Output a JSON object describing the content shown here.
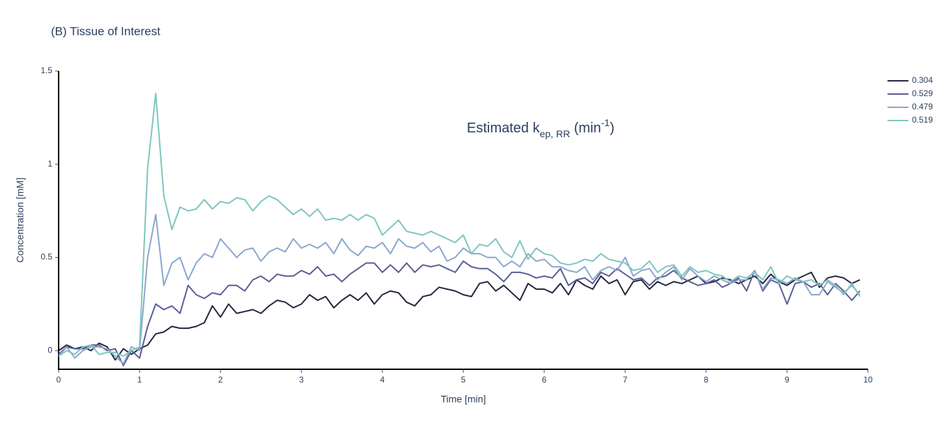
{
  "chart_data": {
    "type": "line",
    "title": "(B) Tissue of Interest",
    "xlabel": "Time [min]",
    "ylabel": "Concentration [mM]",
    "legend_title": {
      "main": "Estimated k",
      "sub": "ep, RR",
      "mid": " (min",
      "sup": "-1",
      "end": ")"
    },
    "legend": "top-right",
    "grid": false,
    "xlim": [
      0,
      10
    ],
    "ylim": [
      -0.1,
      1.5
    ],
    "xticks": [
      0,
      1,
      2,
      3,
      4,
      5,
      6,
      7,
      8,
      9,
      10
    ],
    "yticks": [
      0,
      0.5,
      1,
      1.5
    ],
    "x": [
      0,
      0.1,
      0.2,
      0.3,
      0.4,
      0.5,
      0.6,
      0.7,
      0.8,
      0.9,
      1,
      1.1,
      1.2,
      1.3,
      1.4,
      1.5,
      1.6,
      1.7,
      1.8,
      1.9,
      2,
      2.1,
      2.2,
      2.3,
      2.4,
      2.5,
      2.6,
      2.7,
      2.8,
      2.9,
      3,
      3.1,
      3.2,
      3.3,
      3.4,
      3.5,
      3.6,
      3.7,
      3.8,
      3.9,
      4,
      4.1,
      4.2,
      4.3,
      4.4,
      4.5,
      4.6,
      4.7,
      4.8,
      4.9,
      5,
      5.1,
      5.2,
      5.3,
      5.4,
      5.5,
      5.6,
      5.7,
      5.8,
      5.9,
      6,
      6.1,
      6.2,
      6.3,
      6.4,
      6.5,
      6.6,
      6.7,
      6.8,
      6.9,
      7,
      7.1,
      7.2,
      7.3,
      7.4,
      7.5,
      7.6,
      7.7,
      7.8,
      7.9,
      8,
      8.1,
      8.2,
      8.3,
      8.4,
      8.5,
      8.6,
      8.7,
      8.8,
      8.9,
      9,
      9.1,
      9.2,
      9.3,
      9.4,
      9.5,
      9.6,
      9.7,
      9.8,
      9.9
    ],
    "series": [
      {
        "name": "0.304",
        "color": "#26263f",
        "values": [
          0,
          0.03,
          0.01,
          0.02,
          0,
          0.04,
          0.02,
          -0.05,
          0.01,
          -0.02,
          0.01,
          0.03,
          0.09,
          0.1,
          0.13,
          0.12,
          0.12,
          0.13,
          0.15,
          0.24,
          0.18,
          0.25,
          0.2,
          0.21,
          0.22,
          0.2,
          0.24,
          0.27,
          0.26,
          0.23,
          0.25,
          0.3,
          0.27,
          0.29,
          0.23,
          0.27,
          0.3,
          0.27,
          0.31,
          0.25,
          0.3,
          0.32,
          0.31,
          0.26,
          0.24,
          0.29,
          0.3,
          0.34,
          0.33,
          0.32,
          0.3,
          0.29,
          0.36,
          0.37,
          0.32,
          0.35,
          0.31,
          0.27,
          0.36,
          0.33,
          0.33,
          0.31,
          0.36,
          0.3,
          0.38,
          0.35,
          0.33,
          0.4,
          0.36,
          0.38,
          0.3,
          0.37,
          0.38,
          0.33,
          0.37,
          0.35,
          0.37,
          0.36,
          0.38,
          0.4,
          0.36,
          0.37,
          0.39,
          0.38,
          0.36,
          0.38,
          0.4,
          0.36,
          0.41,
          0.37,
          0.35,
          0.38,
          0.4,
          0.42,
          0.34,
          0.39,
          0.4,
          0.39,
          0.36,
          0.38
        ]
      },
      {
        "name": "0.529",
        "color": "#5a5e95",
        "values": [
          -0.02,
          0.02,
          0.01,
          0.01,
          0.03,
          0.03,
          0,
          0.01,
          -0.08,
          0,
          -0.04,
          0.13,
          0.25,
          0.22,
          0.24,
          0.2,
          0.35,
          0.3,
          0.28,
          0.31,
          0.3,
          0.35,
          0.35,
          0.32,
          0.38,
          0.4,
          0.37,
          0.41,
          0.4,
          0.4,
          0.43,
          0.41,
          0.45,
          0.4,
          0.41,
          0.37,
          0.41,
          0.44,
          0.47,
          0.47,
          0.42,
          0.46,
          0.42,
          0.47,
          0.42,
          0.46,
          0.45,
          0.46,
          0.44,
          0.42,
          0.48,
          0.45,
          0.44,
          0.44,
          0.41,
          0.37,
          0.42,
          0.42,
          0.41,
          0.39,
          0.4,
          0.39,
          0.44,
          0.35,
          0.38,
          0.39,
          0.36,
          0.42,
          0.4,
          0.44,
          0.41,
          0.38,
          0.39,
          0.35,
          0.39,
          0.4,
          0.43,
          0.39,
          0.37,
          0.35,
          0.36,
          0.38,
          0.34,
          0.36,
          0.39,
          0.32,
          0.43,
          0.32,
          0.38,
          0.36,
          0.25,
          0.36,
          0.37,
          0.34,
          0.36,
          0.3,
          0.36,
          0.32,
          0.27,
          0.32
        ]
      },
      {
        "name": "0.479",
        "color": "#8aa7cd",
        "values": [
          -0.03,
          0.02,
          -0.04,
          0,
          0.02,
          0.02,
          0.01,
          -0.03,
          -0.07,
          0.02,
          0,
          0.5,
          0.73,
          0.35,
          0.47,
          0.5,
          0.38,
          0.47,
          0.52,
          0.5,
          0.6,
          0.55,
          0.5,
          0.54,
          0.55,
          0.48,
          0.53,
          0.55,
          0.53,
          0.6,
          0.55,
          0.57,
          0.55,
          0.58,
          0.52,
          0.6,
          0.54,
          0.51,
          0.56,
          0.55,
          0.58,
          0.52,
          0.6,
          0.56,
          0.55,
          0.58,
          0.53,
          0.56,
          0.48,
          0.5,
          0.55,
          0.52,
          0.52,
          0.5,
          0.5,
          0.45,
          0.48,
          0.45,
          0.52,
          0.48,
          0.49,
          0.45,
          0.45,
          0.43,
          0.42,
          0.45,
          0.38,
          0.43,
          0.45,
          0.43,
          0.5,
          0.4,
          0.43,
          0.44,
          0.38,
          0.42,
          0.45,
          0.38,
          0.44,
          0.4,
          0.37,
          0.4,
          0.38,
          0.36,
          0.38,
          0.38,
          0.43,
          0.33,
          0.39,
          0.38,
          0.36,
          0.39,
          0.37,
          0.3,
          0.3,
          0.37,
          0.34,
          0.31,
          0.35,
          0.3
        ]
      },
      {
        "name": "0.519",
        "color": "#7ec6bf",
        "values": [
          -0.03,
          0,
          -0.02,
          0.02,
          0.03,
          -0.02,
          -0.01,
          -0.01,
          -0.03,
          0,
          0.02,
          0.98,
          1.38,
          0.83,
          0.65,
          0.77,
          0.75,
          0.76,
          0.81,
          0.76,
          0.8,
          0.79,
          0.82,
          0.81,
          0.75,
          0.8,
          0.83,
          0.81,
          0.77,
          0.73,
          0.76,
          0.72,
          0.76,
          0.7,
          0.71,
          0.7,
          0.73,
          0.7,
          0.73,
          0.71,
          0.62,
          0.66,
          0.7,
          0.64,
          0.63,
          0.62,
          0.64,
          0.62,
          0.6,
          0.58,
          0.62,
          0.52,
          0.57,
          0.56,
          0.6,
          0.53,
          0.5,
          0.59,
          0.49,
          0.55,
          0.52,
          0.51,
          0.47,
          0.46,
          0.47,
          0.49,
          0.48,
          0.52,
          0.49,
          0.48,
          0.47,
          0.43,
          0.44,
          0.48,
          0.42,
          0.45,
          0.46,
          0.4,
          0.45,
          0.42,
          0.43,
          0.41,
          0.4,
          0.37,
          0.4,
          0.39,
          0.42,
          0.38,
          0.45,
          0.36,
          0.4,
          0.38,
          0.37,
          0.38,
          0.35,
          0.38,
          0.35,
          0.3,
          0.36,
          0.29
        ]
      }
    ]
  }
}
